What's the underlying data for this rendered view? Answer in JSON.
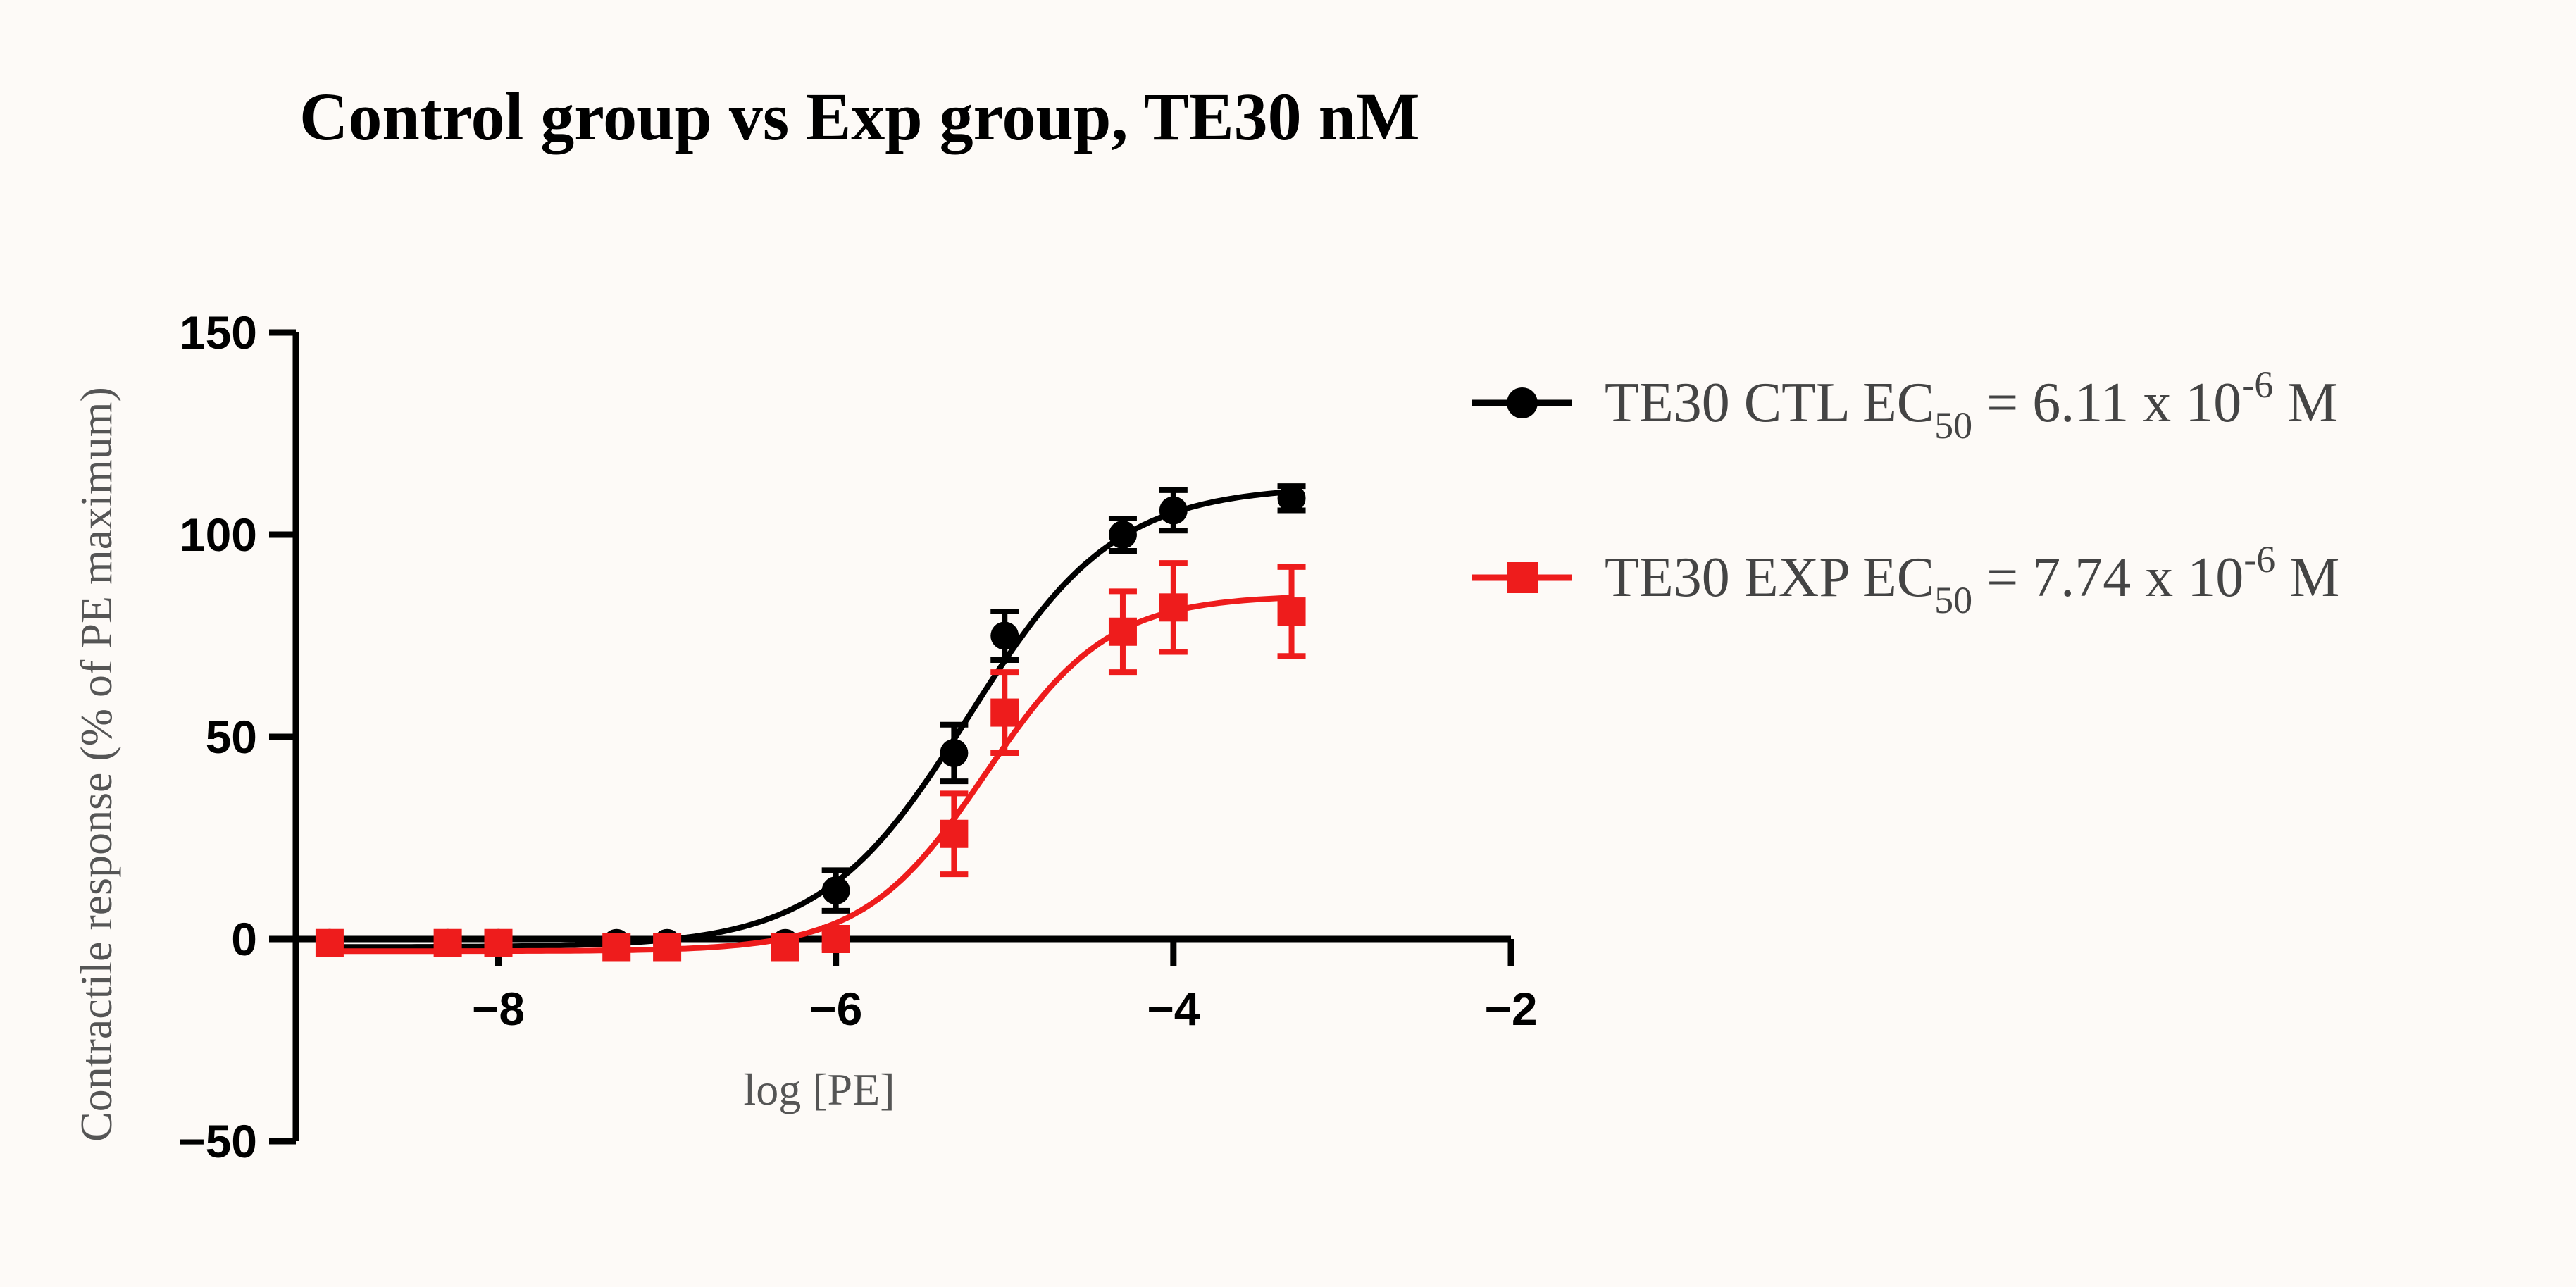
{
  "chart_data": {
    "type": "scatter",
    "title": "Control group vs Exp group, TE30 nM",
    "xlabel": "log [PE]",
    "ylabel": "Contractile response (% of PE maximum)",
    "xlim": [
      -9.2,
      -2
    ],
    "ylim": [
      -50,
      150
    ],
    "x_ticks": [
      -8,
      -6,
      -4,
      -2
    ],
    "x_tick_labels": [
      "−8",
      "−6",
      "−4",
      "−2"
    ],
    "y_ticks": [
      -50,
      0,
      50,
      100,
      150
    ],
    "y_tick_labels": [
      "−50",
      "0",
      "50",
      "100",
      "150"
    ],
    "legend_position": "right",
    "series": [
      {
        "name": "TE30 CTL",
        "legend": {
          "prefix": "TE30 CTL EC",
          "sub": "50",
          "mid": " = 6.11 x 10",
          "sup": "-6",
          "suffix": " M"
        },
        "color": "#000000",
        "marker": "circle",
        "x": [
          -9,
          -8.3,
          -8,
          -7.3,
          -7,
          -6.3,
          -6,
          -5.3,
          -5,
          -4.3,
          -4,
          -3.3
        ],
        "y": [
          -1,
          -1,
          -1,
          -1,
          -1,
          -1,
          12,
          46,
          75,
          100,
          106,
          109
        ],
        "err": [
          1,
          1,
          1,
          1,
          1,
          1,
          5,
          7,
          6,
          4,
          5,
          3
        ],
        "fit": {
          "bottom": -2,
          "top": 112,
          "logEC50": -5.214,
          "hill": 1.0
        }
      },
      {
        "name": "TE30 EXP",
        "legend": {
          "prefix": "TE30 EXP EC",
          "sub": "50",
          "mid": " = 7.74  x 10",
          "sup": "-6",
          "suffix": " M"
        },
        "color": "#ee1c1c",
        "marker": "square",
        "x": [
          -9,
          -8.3,
          -8,
          -7.3,
          -7,
          -6.3,
          -6,
          -5.3,
          -5,
          -4.3,
          -4,
          -3.3
        ],
        "y": [
          -1,
          -1,
          -1,
          -2,
          -2,
          -2,
          0,
          26,
          56,
          76,
          82,
          81
        ],
        "err": [
          1,
          1,
          1,
          1,
          1,
          2,
          2,
          10,
          10,
          10,
          11,
          11
        ],
        "fit": {
          "bottom": -3,
          "top": 85,
          "logEC50": -5.111,
          "hill": 1.2
        }
      }
    ]
  }
}
